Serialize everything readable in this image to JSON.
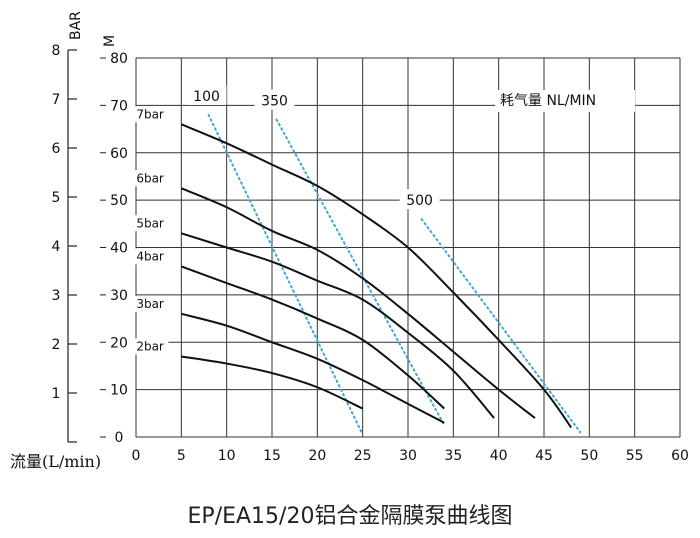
{
  "chart_data": {
    "type": "line",
    "title": "EP/EA15/20铝合金隔膜泵曲线图",
    "xlabel": "流量(L/min)",
    "ylabel_bar": "BAR",
    "ylabel_m": "M",
    "legend_text": "耗气量 NL/MIN",
    "xlim": [
      0,
      60
    ],
    "ylim_m": [
      0,
      80
    ],
    "ylim_bar": [
      0,
      8
    ],
    "x_ticks": [
      "0",
      "5",
      "10",
      "15",
      "20",
      "25",
      "30",
      "35",
      "40",
      "45",
      "50",
      "55",
      "60"
    ],
    "y_ticks_m": [
      "0",
      "10",
      "20",
      "30",
      "40",
      "50",
      "60",
      "70",
      "80"
    ],
    "y_ticks_bar": [
      "1",
      "2",
      "3",
      "4",
      "5",
      "6",
      "7",
      "8"
    ],
    "grid": true,
    "series": [
      {
        "name": "7bar",
        "x": [
          5,
          10,
          15,
          20,
          25,
          30,
          35,
          40,
          45,
          48
        ],
        "y": [
          66,
          62,
          57.5,
          53,
          47,
          40,
          30.5,
          20.5,
          10,
          2
        ]
      },
      {
        "name": "6bar",
        "x": [
          5,
          10,
          15,
          20,
          25,
          30,
          35,
          40,
          44
        ],
        "y": [
          52.5,
          48.5,
          43.5,
          39.5,
          33.5,
          26,
          18,
          10,
          4
        ]
      },
      {
        "name": "5bar",
        "x": [
          5,
          10,
          15,
          20,
          25,
          30,
          35,
          39.5
        ],
        "y": [
          43,
          40,
          37,
          33,
          29,
          22,
          14,
          4
        ]
      },
      {
        "name": "4bar",
        "x": [
          5,
          10,
          15,
          20,
          25,
          30,
          34
        ],
        "y": [
          36,
          32.5,
          29,
          25,
          20.5,
          13,
          6
        ]
      },
      {
        "name": "3bar",
        "x": [
          5,
          10,
          15,
          20,
          25,
          30,
          34
        ],
        "y": [
          26,
          23.5,
          20,
          16.5,
          12,
          7,
          3
        ]
      },
      {
        "name": "2bar",
        "x": [
          5,
          10,
          15,
          20,
          25
        ],
        "y": [
          17,
          15.5,
          13.5,
          10.5,
          6
        ]
      }
    ],
    "air_consumption": [
      {
        "name": "100",
        "x": [
          8,
          25
        ],
        "y": [
          68,
          0.5
        ]
      },
      {
        "name": "350",
        "x": [
          15.5,
          34
        ],
        "y": [
          67,
          2.5
        ]
      },
      {
        "name": "500",
        "x": [
          31.5,
          49
        ],
        "y": [
          46,
          1
        ]
      }
    ]
  }
}
